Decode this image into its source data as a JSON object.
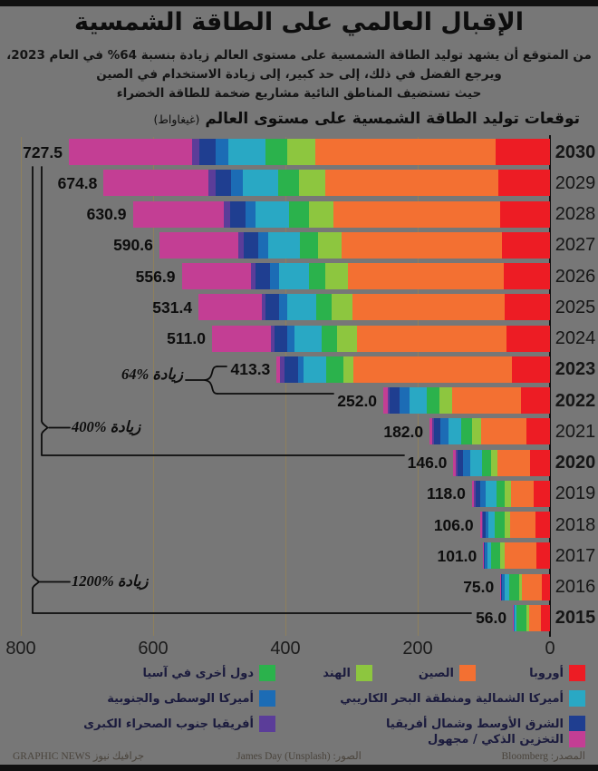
{
  "header": {
    "title": "الإقبال العالمي على الطاقة الشمسية",
    "subtitle_lines": [
      "من المتوقع أن يشهد توليد الطاقة الشمسية على مستوى العالم زيادة بنسبة 64% في العام 2023،",
      "ويرجع الفضل في ذلك، إلى حد كبير، إلى زيادة الاستخدام في الصين",
      "حيث تستضيف المناطق النائية مشاريع ضخمة للطاقة الخضراء"
    ],
    "chart_title": "توقعات توليد الطاقة الشمسية على مستوى العالم",
    "chart_unit": "(غيغاواط)"
  },
  "chart_data": {
    "type": "bar",
    "orientation": "horizontal-stacked",
    "unit_label": "غيغاواط (GW)",
    "axis_ticks": [
      800,
      600,
      400,
      200,
      0
    ],
    "categories": [
      "2030",
      "2029",
      "2028",
      "2027",
      "2026",
      "2025",
      "2024",
      "2023",
      "2022",
      "2021",
      "2020",
      "2019",
      "2018",
      "2017",
      "2016",
      "2015"
    ],
    "totals": [
      727.5,
      674.8,
      630.9,
      590.6,
      556.9,
      531.4,
      511.0,
      413.3,
      252.0,
      182.0,
      146.0,
      118.0,
      106.0,
      101.0,
      75.0,
      56.0
    ],
    "total_labels": [
      "727.5",
      "674.8",
      "630.9",
      "590.6",
      "556.9",
      "531.4",
      "511.0",
      "413.3",
      "252.0",
      "182.0",
      "146.0",
      "118.0",
      "106.0",
      "101.0",
      "75.0",
      "56.0"
    ],
    "bold_categories": [
      "2030",
      "2023",
      "2022",
      "2020",
      "2015"
    ],
    "series": [
      {
        "id": "europe",
        "label": "أوروبا",
        "color": "#ed1c24",
        "values": [
          82,
          78,
          75,
          72,
          70,
          68,
          66,
          57,
          44,
          36,
          30,
          24,
          22,
          20,
          12,
          14
        ]
      },
      {
        "id": "china",
        "label": "الصين",
        "color": "#f37032",
        "values": [
          273,
          262,
          252,
          243,
          236,
          230,
          226,
          240,
          104,
          68,
          49,
          35,
          38,
          48,
          30,
          17
        ]
      },
      {
        "id": "india",
        "label": "الهند",
        "color": "#8dc63f",
        "values": [
          42,
          40,
          38,
          36,
          34,
          32,
          30,
          16,
          19,
          14,
          10,
          9,
          8,
          7,
          5,
          4
        ]
      },
      {
        "id": "other-asia",
        "label": "دول أخرى في آسيا",
        "color": "#2bb24c",
        "values": [
          33,
          31,
          29,
          27,
          25,
          24,
          23,
          26,
          20,
          16,
          14,
          13,
          16,
          14,
          15,
          16
        ]
      },
      {
        "id": "north-america-caribbean",
        "label": "أميركا الشمالية ومنطقة البحر الكاريبي",
        "color": "#29a8c4",
        "values": [
          57,
          54,
          51,
          48,
          45,
          43,
          41,
          34,
          25,
          20,
          18,
          16,
          9,
          6,
          7,
          2
        ]
      },
      {
        "id": "central-south-america",
        "label": "أميركا الوسطى والجنوبية",
        "color": "#1c6cb5",
        "values": [
          18,
          17,
          16,
          15,
          14,
          13,
          12,
          8,
          16,
          12,
          10,
          9,
          5,
          3,
          3.5,
          1.5
        ]
      },
      {
        "id": "middle-east-north-africa",
        "label": "الشرق الأوسط وشمال أفريقيا",
        "color": "#1f3e90",
        "values": [
          25,
          24,
          23,
          22,
          21,
          20,
          19,
          20,
          15,
          10,
          9,
          7,
          4,
          1.5,
          1,
          0.5
        ]
      },
      {
        "id": "sub-saharan-africa",
        "label": "أفريقيا جنوب الصحراء الكبرى",
        "color": "#5b3d99",
        "values": [
          11,
          10,
          9,
          8,
          7,
          6,
          5,
          7,
          2,
          2,
          2,
          2,
          1.5,
          0.5,
          0.5,
          0.5
        ]
      },
      {
        "id": "storage-unknown",
        "label": "التخزين الذكي / مجهول",
        "color": "#c33e94",
        "values": [
          186.5,
          158.8,
          137.9,
          119.6,
          104.9,
          95.4,
          89,
          5.3,
          7,
          4,
          4,
          3,
          2.5,
          1,
          1,
          0.5
        ]
      }
    ],
    "annotations": [
      {
        "label": "زيادة %64",
        "from": "2022",
        "to": "2023"
      },
      {
        "label": "زيادة %400",
        "from": "2020",
        "to": "2030"
      },
      {
        "label": "زيادة %1200",
        "from": "2015",
        "to": "2030"
      }
    ]
  },
  "footer": {
    "source": "المصدر: Bloomberg",
    "photo": "الصور: James Day (Unsplash)",
    "brand": "جرافيك نيوز GRAPHIC NEWS"
  }
}
